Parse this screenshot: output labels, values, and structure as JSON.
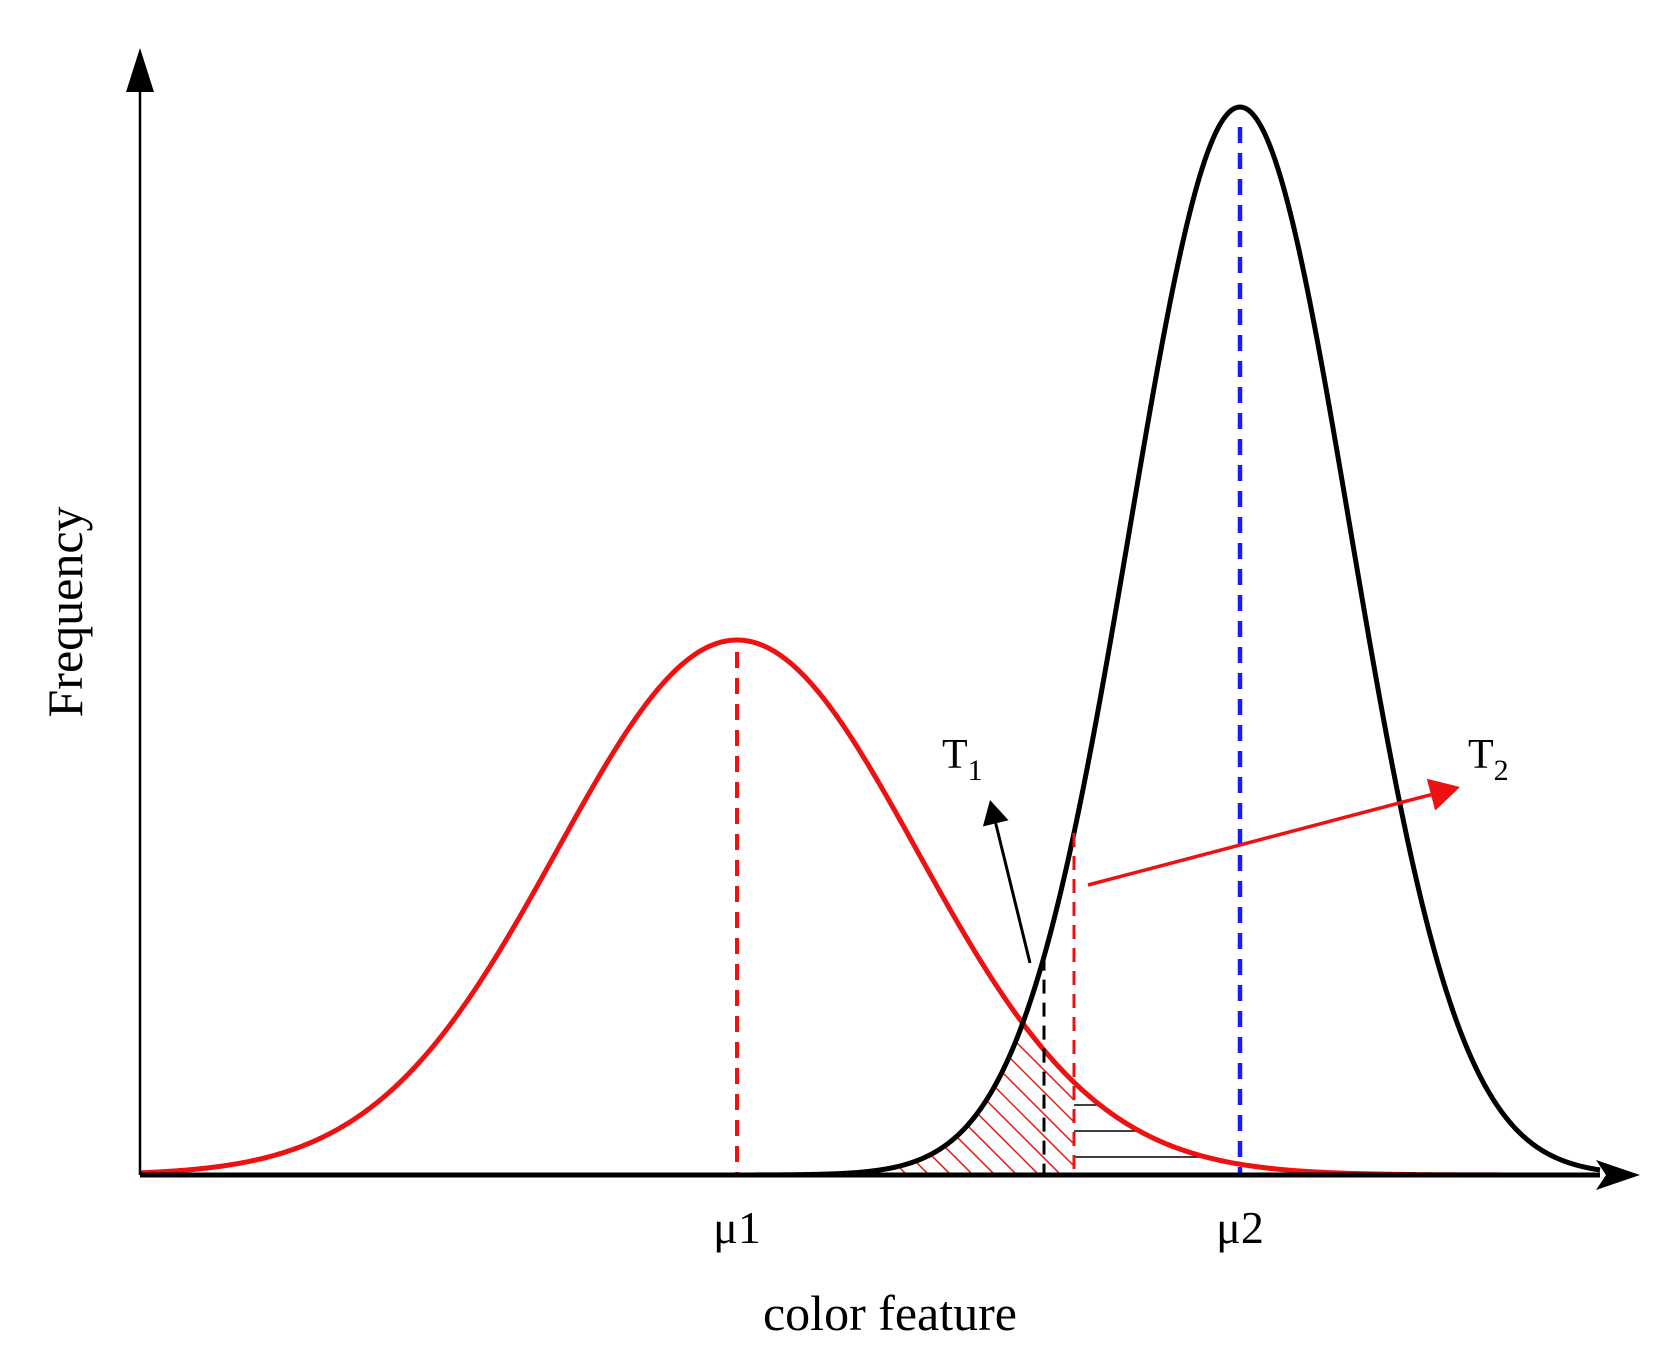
{
  "diagram": {
    "y_axis_label": "Frequency",
    "x_axis_label": "color feature",
    "mu1_label": "μ1",
    "mu2_label": "μ2",
    "t1_label": "T",
    "t1_sub": "1",
    "t2_label": "T",
    "t2_sub": "2"
  },
  "colors": {
    "curve1": "#ee1111",
    "curve2": "#000000",
    "mean2_line": "#1a1aff",
    "threshold2": "#ee1111",
    "threshold1": "#000000"
  }
}
